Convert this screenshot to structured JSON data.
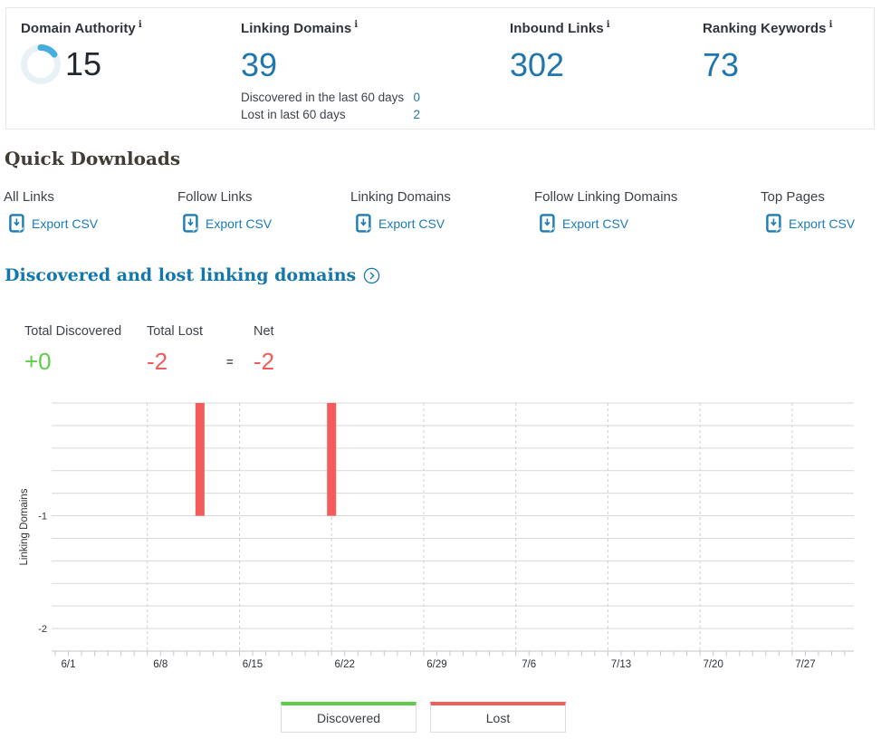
{
  "metrics": {
    "domain_authority": {
      "label": "Domain Authority",
      "info": "i",
      "value": "15",
      "percent": 15
    },
    "linking_domains": {
      "label": "Linking Domains",
      "info": "i",
      "value": "39",
      "rows": [
        {
          "label": "Discovered in the last 60 days",
          "value": "0"
        },
        {
          "label": "Lost in last 60 days",
          "value": "2"
        }
      ]
    },
    "inbound_links": {
      "label": "Inbound Links",
      "info": "i",
      "value": "302"
    },
    "ranking_keywords": {
      "label": "Ranking Keywords",
      "info": "i",
      "value": "73"
    }
  },
  "quick_downloads": {
    "title": "Quick Downloads",
    "items": [
      {
        "label": "All Links",
        "link_label": "Export CSV"
      },
      {
        "label": "Follow Links",
        "link_label": "Export CSV"
      },
      {
        "label": "Linking Domains",
        "link_label": "Export CSV"
      },
      {
        "label": "Follow Linking Domains",
        "link_label": "Export CSV"
      },
      {
        "label": "Top Pages",
        "link_label": "Export CSV"
      }
    ]
  },
  "section": {
    "title": "Discovered and lost linking domains"
  },
  "summary": {
    "discovered_label": "Total Discovered",
    "discovered_value": "+0",
    "lost_label": "Total Lost",
    "lost_value": "-2",
    "equals": "=",
    "net_label": "Net",
    "net_value": "-2"
  },
  "chart_data": {
    "type": "bar",
    "title": "Discovered and lost linking domains",
    "xlabel": "",
    "ylabel": "Linking Domains",
    "ylim": [
      -2.2,
      0
    ],
    "y_ticks": [
      -1,
      -2
    ],
    "x_tick_labels": [
      "6/1",
      "6/8",
      "6/15",
      "6/22",
      "6/29",
      "7/6",
      "7/13",
      "7/20",
      "7/27"
    ],
    "x_range_days": 61,
    "grid": true,
    "legend_position": "bottom",
    "series": [
      {
        "name": "Discovered",
        "color": "#5fcc4a",
        "points": []
      },
      {
        "name": "Lost",
        "color": "#f45b5b",
        "points": [
          {
            "date": "6/11",
            "value": -1
          },
          {
            "date": "6/21",
            "value": -1
          }
        ]
      }
    ]
  },
  "colors": {
    "metric_blue": "#2076ad",
    "link_blue": "#1c7bb5",
    "heading_blue": "#1377a9",
    "green": "#5fcc4a",
    "red": "#f45b5b",
    "donut_track": "#e8f1f6",
    "donut_arc": "#45aede"
  }
}
